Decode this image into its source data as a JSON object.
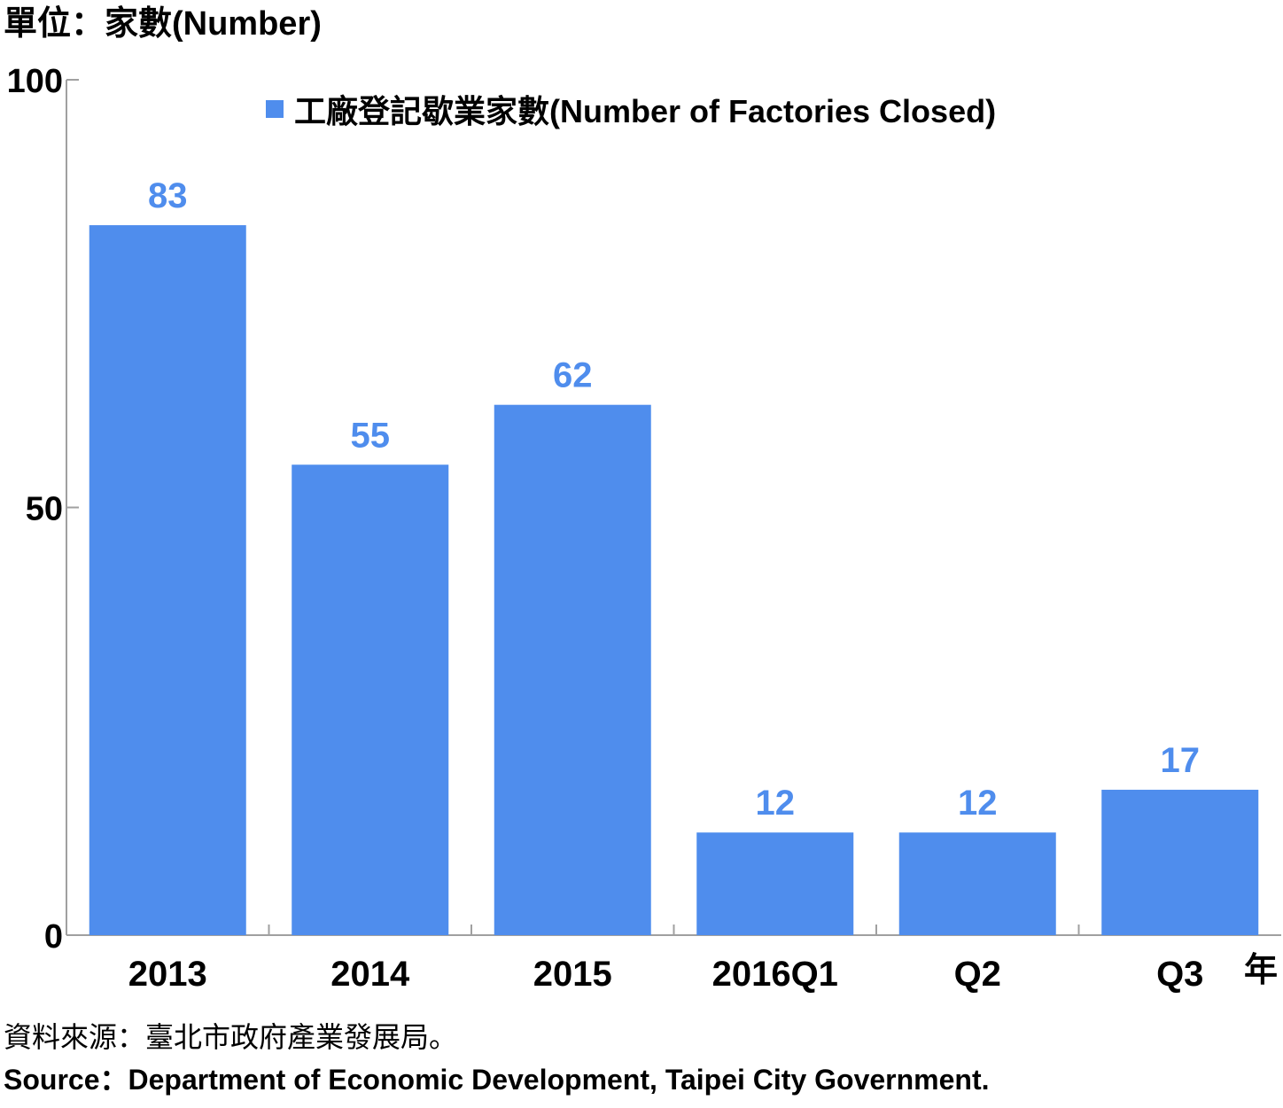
{
  "unit_label": "單位：家數(Number)",
  "chart_data": {
    "type": "bar",
    "categories": [
      "2013",
      "2014",
      "2015",
      "2016Q1",
      "Q2",
      "Q3"
    ],
    "series": [
      {
        "name": "工廠登記歇業家數(Number of Factories Closed)",
        "values": [
          83,
          55,
          62,
          12,
          12,
          17
        ]
      }
    ],
    "ylim": [
      0,
      100
    ],
    "yticks": [
      0,
      50,
      100
    ],
    "data_labels": true,
    "grid": false,
    "legend_position": "top-center",
    "colors": {
      "bar": "#4f8ded",
      "data_label": "#4f8ded",
      "axis": "#a0a0a0"
    }
  },
  "x_axis_suffix": "年",
  "source_zh": "資料來源：臺北市政府產業發展局。",
  "source_en": "Source：Department of Economic Development, Taipei City Government."
}
